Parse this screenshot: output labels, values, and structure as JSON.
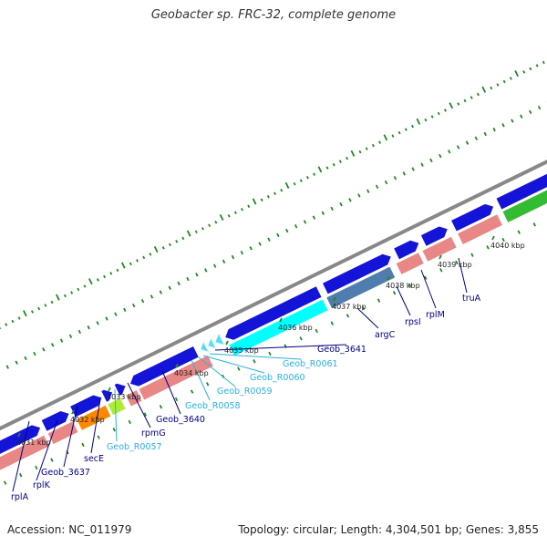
{
  "title": "Geobacter sp. FRC-32, complete genome",
  "footer": {
    "accession": "Accession: NC_011979",
    "topology": "Topology: circular; Length: 4,304,501 bp; Genes: 3,855"
  },
  "colors": {
    "backbone": "#888888",
    "cds": "#1414d8",
    "rrna": "#e98787",
    "trna": "#55ddf5",
    "cyan_gene": "#00ffff",
    "steelblue_gene": "#4f7eae",
    "orange_gene": "#ff8800",
    "lime_gene": "#aaee33",
    "green_gene": "#33bb33",
    "gene_label_dark": "#000080",
    "gene_label_light": "#2ab0e0",
    "tick": "#228822"
  },
  "kbp_labels": [
    "4031 kbp",
    "4032 kbp",
    "4033 kbp",
    "4034 kbp",
    "4035 kbp",
    "4036 kbp",
    "4037 kbp",
    "4038 kbp",
    "4039 kbp",
    "4040 kbp"
  ],
  "gene_labels": [
    {
      "text": "rplA",
      "color": "dark"
    },
    {
      "text": "rplK",
      "color": "dark"
    },
    {
      "text": "Geob_3637",
      "color": "dark"
    },
    {
      "text": "secE",
      "color": "dark"
    },
    {
      "text": "Geob_R0057",
      "color": "light"
    },
    {
      "text": "rpmG",
      "color": "dark"
    },
    {
      "text": "Geob_3640",
      "color": "dark"
    },
    {
      "text": "Geob_R0058",
      "color": "light"
    },
    {
      "text": "Geob_R0059",
      "color": "light"
    },
    {
      "text": "Geob_R0060",
      "color": "light"
    },
    {
      "text": "Geob_R0061",
      "color": "light"
    },
    {
      "text": "Geob_3641",
      "color": "dark"
    },
    {
      "text": "argC",
      "color": "dark"
    },
    {
      "text": "rpsI",
      "color": "dark"
    },
    {
      "text": "rplM",
      "color": "dark"
    },
    {
      "text": "truA",
      "color": "dark"
    }
  ]
}
